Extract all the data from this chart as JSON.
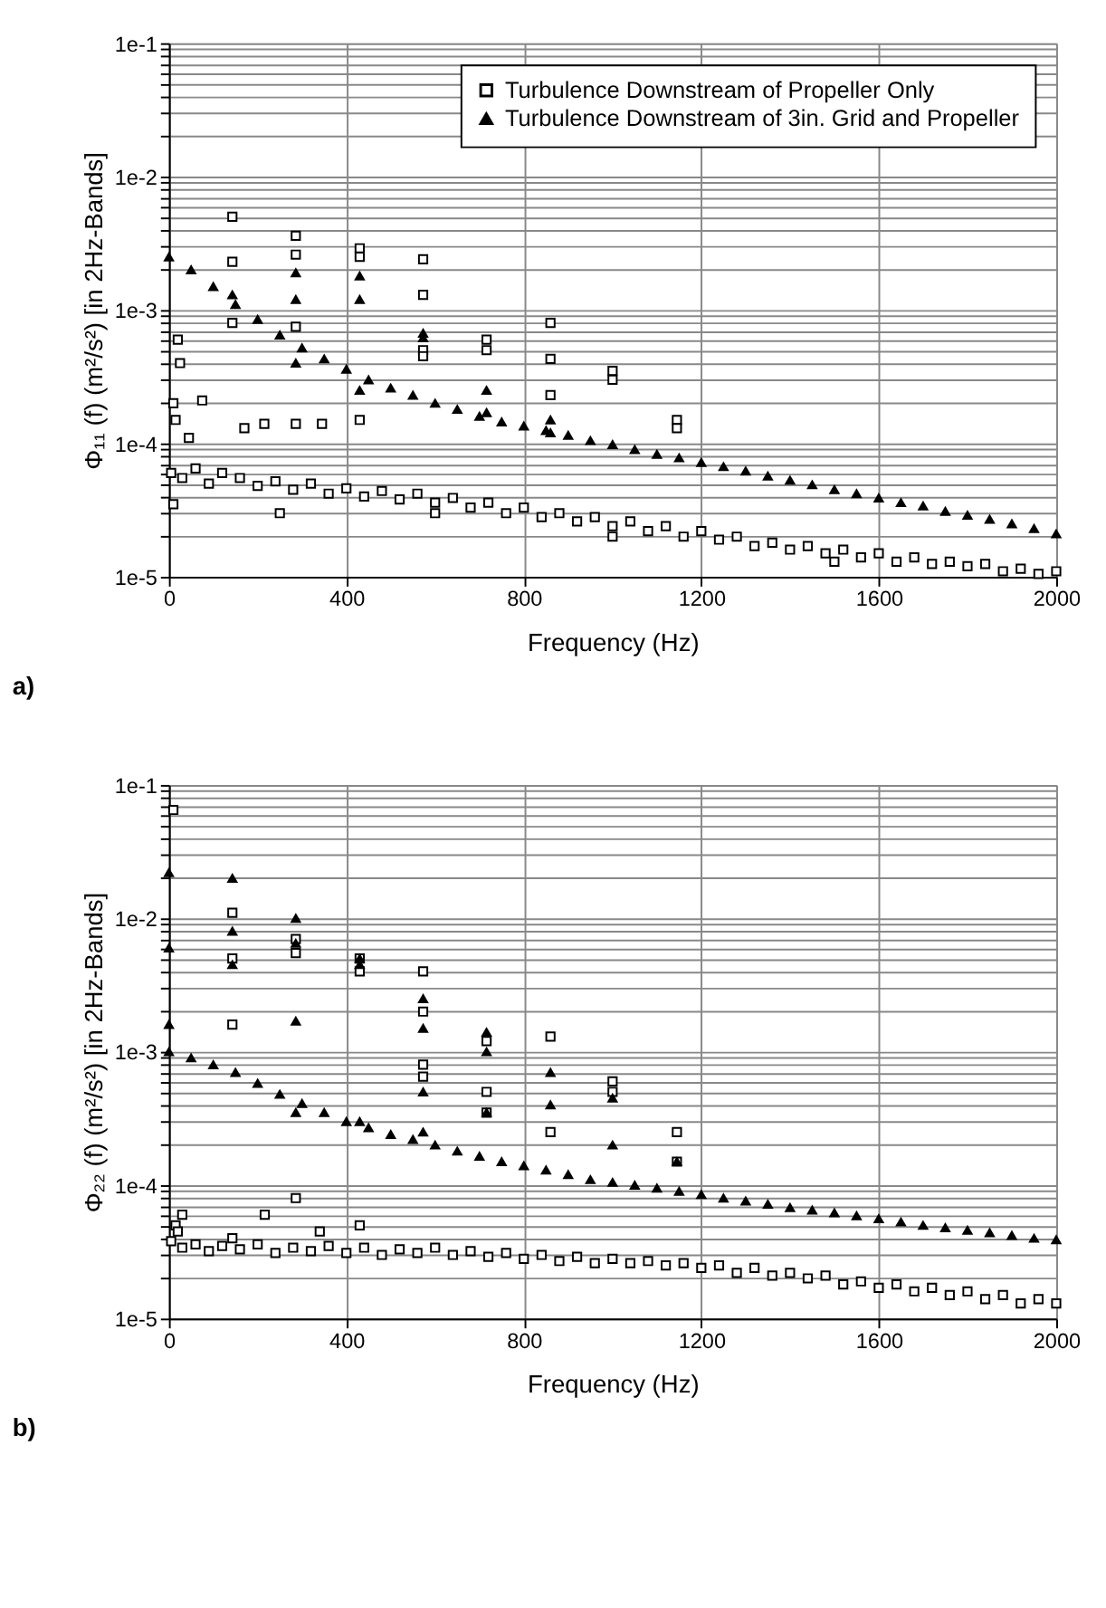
{
  "chart_data": [
    {
      "type": "scatter",
      "xlabel": "Frequency (Hz)",
      "ylabel": "Φ₁₁ (f) (m²/s²) [in 2Hz-Bands]",
      "annotations": [
        "a)"
      ],
      "log": "y",
      "grid": true,
      "legend": "top right",
      "xlim": [
        0,
        2000
      ],
      "xticks": [
        0,
        400,
        800,
        1200,
        1600,
        2000
      ],
      "ylim": [
        1e-05,
        0.1
      ],
      "yticks": [
        {
          "value": 1e-05,
          "label": "1e-5"
        },
        {
          "value": 2e-05,
          "label": null
        },
        {
          "value": 3e-05,
          "label": null
        },
        {
          "value": 4e-05,
          "label": null
        },
        {
          "value": 5e-05,
          "label": null
        },
        {
          "value": 6e-05,
          "label": null
        },
        {
          "value": 7e-05,
          "label": null
        },
        {
          "value": 8e-05,
          "label": null
        },
        {
          "value": 9e-05,
          "label": null
        },
        {
          "value": 0.0001,
          "label": "1e-4"
        },
        {
          "value": 0.0002,
          "label": null
        },
        {
          "value": 0.0003,
          "label": null
        },
        {
          "value": 0.0004,
          "label": null
        },
        {
          "value": 0.0005,
          "label": null
        },
        {
          "value": 0.0006,
          "label": null
        },
        {
          "value": 0.0007,
          "label": null
        },
        {
          "value": 0.0008,
          "label": null
        },
        {
          "value": 0.0009,
          "label": null
        },
        {
          "value": 0.001,
          "label": "1e-3"
        },
        {
          "value": 0.002,
          "label": null
        },
        {
          "value": 0.003,
          "label": null
        },
        {
          "value": 0.004,
          "label": null
        },
        {
          "value": 0.005,
          "label": null
        },
        {
          "value": 0.006,
          "label": null
        },
        {
          "value": 0.007,
          "label": null
        },
        {
          "value": 0.008,
          "label": null
        },
        {
          "value": 0.009,
          "label": null
        },
        {
          "value": 0.01,
          "label": "1e-2"
        },
        {
          "value": 0.02,
          "label": null
        },
        {
          "value": 0.03,
          "label": null
        },
        {
          "value": 0.04,
          "label": null
        },
        {
          "value": 0.05,
          "label": null
        },
        {
          "value": 0.06,
          "label": null
        },
        {
          "value": 0.07,
          "label": null
        },
        {
          "value": 0.08,
          "label": null
        },
        {
          "value": 0.09,
          "label": null
        },
        {
          "value": 0.1,
          "label": "1e-1"
        }
      ],
      "series": [
        {
          "name": "Turbulence Downstream of Propeller Only",
          "color": "#000000",
          "marker": "square",
          "x": [
            5,
            30,
            60,
            90,
            120,
            160,
            200,
            240,
            280,
            320,
            360,
            400,
            440,
            480,
            520,
            560,
            600,
            640,
            680,
            720,
            760,
            800,
            840,
            880,
            920,
            960,
            1000,
            1040,
            1080,
            1120,
            1160,
            1200,
            1240,
            1280,
            1320,
            1360,
            1400,
            1440,
            1480,
            1520,
            1560,
            1600,
            1640,
            1680,
            1720,
            1760,
            1800,
            1840,
            1880,
            1920,
            1960,
            2000,
            10,
            250,
            600,
            1000,
            1500,
            10,
            15,
            20,
            25,
            45,
            75,
            143,
            143,
            143,
            170,
            215,
            286,
            286,
            286,
            286,
            345,
            430,
            430,
            430,
            573,
            573,
            573,
            573,
            716,
            716,
            860,
            860,
            860,
            1000,
            1000,
            1145,
            1145
          ],
          "values": [
            6e-05,
            5.5e-05,
            6.5e-05,
            5e-05,
            6e-05,
            5.5e-05,
            4.8e-05,
            5.2e-05,
            4.5e-05,
            5e-05,
            4.2e-05,
            4.6e-05,
            4e-05,
            4.4e-05,
            3.8e-05,
            4.2e-05,
            3.6e-05,
            3.9e-05,
            3.3e-05,
            3.6e-05,
            3e-05,
            3.3e-05,
            2.8e-05,
            3e-05,
            2.6e-05,
            2.8e-05,
            2.4e-05,
            2.6e-05,
            2.2e-05,
            2.4e-05,
            2e-05,
            2.2e-05,
            1.9e-05,
            2e-05,
            1.7e-05,
            1.8e-05,
            1.6e-05,
            1.7e-05,
            1.5e-05,
            1.6e-05,
            1.4e-05,
            1.5e-05,
            1.3e-05,
            1.4e-05,
            1.25e-05,
            1.3e-05,
            1.2e-05,
            1.25e-05,
            1.1e-05,
            1.15e-05,
            1.05e-05,
            1.1e-05,
            3.5e-05,
            3e-05,
            3e-05,
            2e-05,
            1.3e-05,
            0.0002,
            0.00015,
            0.0006,
            0.0004,
            0.00011,
            0.00021,
            0.005,
            0.0023,
            0.0008,
            0.00013,
            0.00014,
            0.0036,
            0.0026,
            0.00075,
            0.00014,
            0.00014,
            0.0029,
            0.0025,
            0.00015,
            0.0024,
            0.0013,
            0.0005,
            0.00045,
            0.0006,
            0.0005,
            0.0008,
            0.00043,
            0.00023,
            0.00035,
            0.0003,
            0.00015,
            0.00013
          ]
        },
        {
          "name": "Turbulence Downstream of 3in. Grid and Propeller",
          "color": "#000000",
          "marker": "triangle",
          "x": [
            0,
            50,
            100,
            150,
            200,
            250,
            300,
            350,
            400,
            450,
            500,
            550,
            600,
            650,
            700,
            750,
            800,
            850,
            900,
            950,
            1000,
            1050,
            1100,
            1150,
            1200,
            1250,
            1300,
            1350,
            1400,
            1450,
            1500,
            1550,
            1600,
            1650,
            1700,
            1750,
            1800,
            1850,
            1900,
            1950,
            2000,
            143,
            286,
            286,
            286,
            430,
            430,
            430,
            573,
            573,
            716,
            716,
            860,
            860
          ],
          "values": [
            0.0025,
            0.002,
            0.0015,
            0.0011,
            0.00085,
            0.00065,
            0.00052,
            0.00043,
            0.00036,
            0.0003,
            0.00026,
            0.00023,
            0.0002,
            0.00018,
            0.00016,
            0.000145,
            0.000135,
            0.000125,
            0.000115,
            0.000105,
            9.8e-05,
            9e-05,
            8.3e-05,
            7.8e-05,
            7.2e-05,
            6.7e-05,
            6.2e-05,
            5.7e-05,
            5.3e-05,
            4.9e-05,
            4.5e-05,
            4.2e-05,
            3.9e-05,
            3.6e-05,
            3.4e-05,
            3.1e-05,
            2.9e-05,
            2.7e-05,
            2.5e-05,
            2.3e-05,
            2.1e-05,
            0.0013,
            0.0019,
            0.0012,
            0.0004,
            0.0018,
            0.0012,
            0.00025,
            0.00067,
            0.00062,
            0.00025,
            0.00017,
            0.00015,
            0.00012
          ]
        }
      ]
    },
    {
      "type": "scatter",
      "xlabel": "Frequency (Hz)",
      "ylabel": "Φ₂₂ (f) (m²/s²) [in 2Hz-Bands]",
      "annotations": [
        "b)"
      ],
      "log": "y",
      "grid": true,
      "legend": "top right",
      "xlim": [
        0,
        2000
      ],
      "xticks": [
        0,
        400,
        800,
        1200,
        1600,
        2000
      ],
      "ylim": [
        1e-05,
        0.1
      ],
      "yticks": [
        {
          "value": 1e-05,
          "label": "1e-5"
        },
        {
          "value": 2e-05,
          "label": null
        },
        {
          "value": 3e-05,
          "label": null
        },
        {
          "value": 4e-05,
          "label": null
        },
        {
          "value": 5e-05,
          "label": null
        },
        {
          "value": 6e-05,
          "label": null
        },
        {
          "value": 7e-05,
          "label": null
        },
        {
          "value": 8e-05,
          "label": null
        },
        {
          "value": 9e-05,
          "label": null
        },
        {
          "value": 0.0001,
          "label": "1e-4"
        },
        {
          "value": 0.0002,
          "label": null
        },
        {
          "value": 0.0003,
          "label": null
        },
        {
          "value": 0.0004,
          "label": null
        },
        {
          "value": 0.0005,
          "label": null
        },
        {
          "value": 0.0006,
          "label": null
        },
        {
          "value": 0.0007,
          "label": null
        },
        {
          "value": 0.0008,
          "label": null
        },
        {
          "value": 0.0009,
          "label": null
        },
        {
          "value": 0.001,
          "label": "1e-3"
        },
        {
          "value": 0.002,
          "label": null
        },
        {
          "value": 0.003,
          "label": null
        },
        {
          "value": 0.004,
          "label": null
        },
        {
          "value": 0.005,
          "label": null
        },
        {
          "value": 0.006,
          "label": null
        },
        {
          "value": 0.007,
          "label": null
        },
        {
          "value": 0.008,
          "label": null
        },
        {
          "value": 0.009,
          "label": null
        },
        {
          "value": 0.01,
          "label": "1e-2"
        },
        {
          "value": 0.02,
          "label": null
        },
        {
          "value": 0.03,
          "label": null
        },
        {
          "value": 0.04,
          "label": null
        },
        {
          "value": 0.05,
          "label": null
        },
        {
          "value": 0.06,
          "label": null
        },
        {
          "value": 0.07,
          "label": null
        },
        {
          "value": 0.08,
          "label": null
        },
        {
          "value": 0.09,
          "label": null
        },
        {
          "value": 0.1,
          "label": "1e-1"
        }
      ],
      "series": [
        {
          "name": "Turbulence Downstream of Propeller Only",
          "color": "#000000",
          "marker": "square",
          "x": [
            5,
            30,
            60,
            90,
            120,
            160,
            200,
            240,
            280,
            320,
            360,
            400,
            440,
            480,
            520,
            560,
            600,
            640,
            680,
            720,
            760,
            800,
            840,
            880,
            920,
            960,
            1000,
            1040,
            1080,
            1120,
            1160,
            1200,
            1240,
            1280,
            1320,
            1360,
            1400,
            1440,
            1480,
            1520,
            1560,
            1600,
            1640,
            1680,
            1720,
            1760,
            1800,
            1840,
            1880,
            1920,
            1960,
            2000,
            10,
            15,
            20,
            30,
            143,
            143,
            143,
            143,
            216,
            286,
            286,
            286,
            340,
            430,
            430,
            430,
            573,
            573,
            573,
            573,
            716,
            716,
            716,
            860,
            860,
            1000,
            1000,
            1145,
            1145
          ],
          "values": [
            3.8e-05,
            3.4e-05,
            3.6e-05,
            3.2e-05,
            3.5e-05,
            3.3e-05,
            3.6e-05,
            3.1e-05,
            3.4e-05,
            3.2e-05,
            3.5e-05,
            3.1e-05,
            3.4e-05,
            3e-05,
            3.3e-05,
            3.1e-05,
            3.4e-05,
            3e-05,
            3.2e-05,
            2.9e-05,
            3.1e-05,
            2.8e-05,
            3e-05,
            2.7e-05,
            2.9e-05,
            2.6e-05,
            2.8e-05,
            2.6e-05,
            2.7e-05,
            2.5e-05,
            2.6e-05,
            2.4e-05,
            2.5e-05,
            2.2e-05,
            2.4e-05,
            2.1e-05,
            2.2e-05,
            2e-05,
            2.1e-05,
            1.8e-05,
            1.9e-05,
            1.7e-05,
            1.8e-05,
            1.6e-05,
            1.7e-05,
            1.5e-05,
            1.6e-05,
            1.4e-05,
            1.5e-05,
            1.3e-05,
            1.4e-05,
            1.3e-05,
            0.065,
            5e-05,
            4.5e-05,
            6e-05,
            0.011,
            0.005,
            0.0016,
            4e-05,
            6e-05,
            0.007,
            0.0055,
            8e-05,
            4.5e-05,
            0.005,
            0.004,
            5e-05,
            0.004,
            0.002,
            0.0008,
            0.00065,
            0.0012,
            0.0005,
            0.00035,
            0.0013,
            0.00025,
            0.0006,
            0.0005,
            0.00025,
            0.00015
          ]
        },
        {
          "name": "Turbulence Downstream of 3in. Grid and Propeller",
          "color": "#000000",
          "marker": "triangle",
          "x": [
            0,
            50,
            100,
            150,
            200,
            250,
            300,
            350,
            400,
            450,
            500,
            550,
            600,
            650,
            700,
            750,
            800,
            850,
            900,
            950,
            1000,
            1050,
            1100,
            1150,
            1200,
            1250,
            1300,
            1350,
            1400,
            1450,
            1500,
            1550,
            1600,
            1650,
            1700,
            1750,
            1800,
            1850,
            1900,
            1950,
            2000,
            0,
            0,
            0,
            143,
            143,
            143,
            286,
            286,
            286,
            286,
            430,
            430,
            430,
            573,
            573,
            573,
            573,
            716,
            716,
            716,
            860,
            860,
            1000,
            1000,
            1145
          ],
          "values": [
            0.001,
            0.0009,
            0.0008,
            0.0007,
            0.00058,
            0.00048,
            0.00041,
            0.00035,
            0.0003,
            0.00027,
            0.00024,
            0.00022,
            0.0002,
            0.00018,
            0.000165,
            0.00015,
            0.00014,
            0.00013,
            0.00012,
            0.00011,
            0.000105,
            0.0001,
            9.5e-05,
            9e-05,
            8.5e-05,
            8e-05,
            7.6e-05,
            7.2e-05,
            6.8e-05,
            6.5e-05,
            6.2e-05,
            5.9e-05,
            5.6e-05,
            5.3e-05,
            5e-05,
            4.8e-05,
            4.6e-05,
            4.4e-05,
            4.2e-05,
            4e-05,
            3.9e-05,
            0.022,
            0.006,
            0.0016,
            0.02,
            0.008,
            0.0045,
            0.01,
            0.0065,
            0.0017,
            0.00035,
            0.005,
            0.0045,
            0.0003,
            0.0025,
            0.0015,
            0.0005,
            0.00025,
            0.0014,
            0.001,
            0.00035,
            0.0007,
            0.0004,
            0.00045,
            0.0002,
            0.00015
          ]
        }
      ]
    }
  ]
}
